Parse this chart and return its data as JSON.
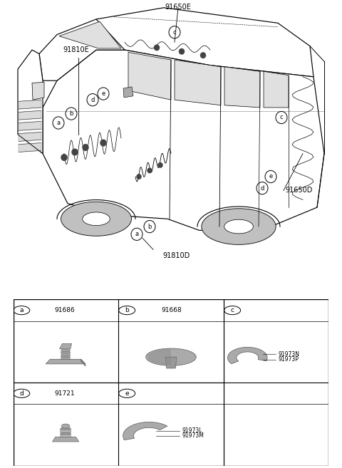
{
  "bg_color": "#ffffff",
  "label_91650E": "91650E",
  "label_91810E": "91810E",
  "label_91650D": "91650D",
  "label_91810D": "91810D",
  "parts": [
    {
      "id": "a",
      "part_num": "91686",
      "row": 0,
      "col": 0
    },
    {
      "id": "b",
      "part_num": "91668",
      "row": 0,
      "col": 1
    },
    {
      "id": "c",
      "part_nums": [
        "91973N",
        "91973P"
      ],
      "row": 0,
      "col": 2
    },
    {
      "id": "d",
      "part_num": "91721",
      "row": 1,
      "col": 0
    },
    {
      "id": "e",
      "part_nums": [
        "91973L",
        "91973M"
      ],
      "row": 1,
      "col": 1
    }
  ],
  "fig_width": 4.8,
  "fig_height": 6.57,
  "dpi": 100,
  "lw": 0.7,
  "gray_part": "#999999",
  "gray_light": "#bbbbbb",
  "gray_dark": "#777777"
}
